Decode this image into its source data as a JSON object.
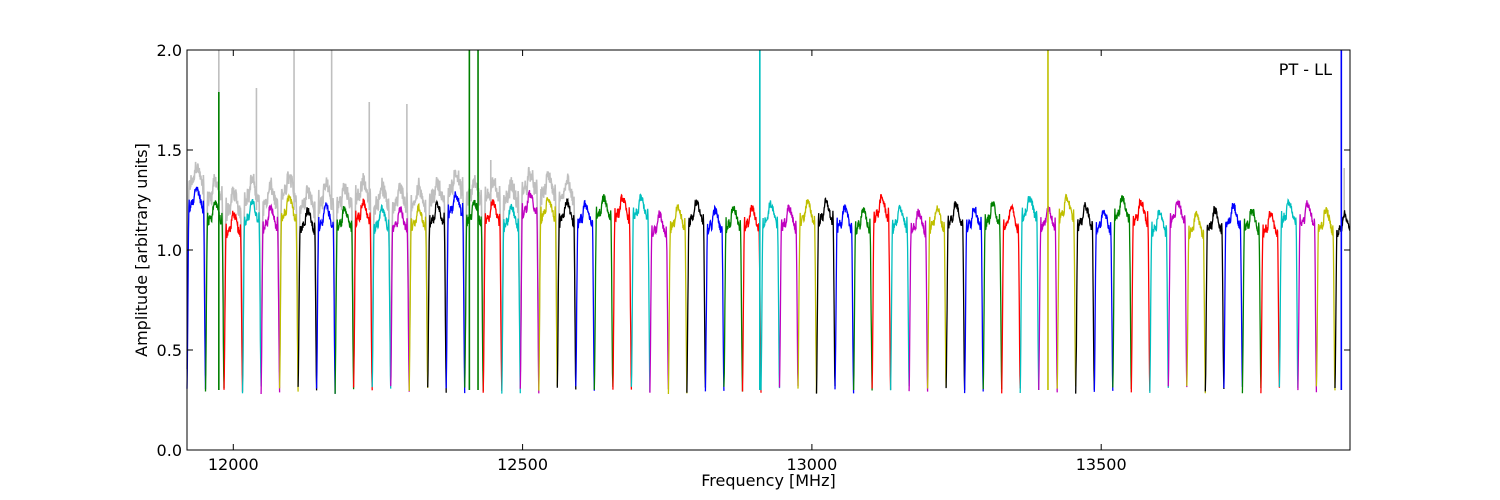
{
  "chart_data": {
    "type": "line",
    "xlabel": "Frequency [MHz]",
    "ylabel": "Amplitude [arbitrary units]",
    "annotation": "PT - LL",
    "xlim": [
      11920,
      13930
    ],
    "ylim": [
      0.0,
      2.0
    ],
    "xticks": [
      12000,
      12500,
      13000,
      13500
    ],
    "yticks": [
      0.0,
      0.5,
      1.0,
      1.5,
      2.0
    ],
    "ytick_labels": [
      "0.0",
      "0.5",
      "1.0",
      "1.5",
      "2.0"
    ],
    "grid": false,
    "channel_width_mhz": 32,
    "band_start_mhz": 11920,
    "color_cycle": [
      "#0000ff",
      "#008000",
      "#ff0000",
      "#00bfbf",
      "#bf00bf",
      "#bfbf00",
      "#000000"
    ],
    "background_color": "#bfbfbf",
    "channel_levels": [
      1.25,
      1.18,
      1.12,
      1.18,
      1.15,
      1.2,
      1.14,
      1.16,
      1.15,
      1.18,
      1.15,
      1.14,
      1.15,
      1.17,
      1.22,
      1.18,
      1.18,
      1.16,
      1.22,
      1.2,
      1.18,
      1.17,
      1.2,
      1.2,
      1.2,
      1.12,
      1.15,
      1.18,
      1.14,
      1.15,
      1.15,
      1.17,
      1.15,
      1.18,
      1.18,
      1.15,
      1.14,
      1.2,
      1.15,
      1.13,
      1.15,
      1.17,
      1.15,
      1.17,
      1.15,
      1.2,
      1.15,
      1.2,
      1.16,
      1.14,
      1.2,
      1.18,
      1.13,
      1.18,
      1.12,
      1.14,
      1.16,
      1.14,
      1.12,
      1.18,
      1.17,
      1.14,
      1.12,
      1.15
    ],
    "spikes": [
      {
        "x": 11975,
        "y": 1.79,
        "series_index": 1
      },
      {
        "x": 12408,
        "y": 2.0,
        "series_index": 1
      },
      {
        "x": 12423,
        "y": 2.0,
        "series_index": 1
      },
      {
        "x": 12910,
        "y": 2.0,
        "series_index": 3
      },
      {
        "x": 13408,
        "y": 2.0,
        "series_index": 5
      },
      {
        "x": 13915,
        "y": 2.0,
        "series_index": 0
      }
    ],
    "background_spikes": [
      {
        "x": 11975,
        "y": 2.0
      },
      {
        "x": 12040,
        "y": 1.81
      },
      {
        "x": 12105,
        "y": 2.0
      },
      {
        "x": 12170,
        "y": 2.0
      },
      {
        "x": 12235,
        "y": 1.74
      },
      {
        "x": 12300,
        "y": 1.73
      },
      {
        "x": 12445,
        "y": 1.45
      },
      {
        "x": 13920,
        "y": 1.41
      }
    ]
  }
}
